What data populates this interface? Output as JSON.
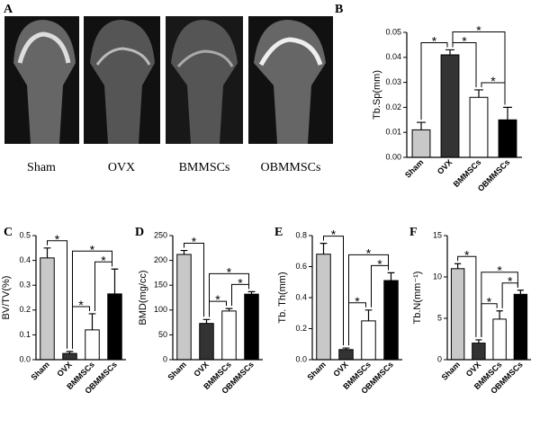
{
  "panel_a": {
    "label": "A",
    "captions": [
      "Sham",
      "OVX",
      "BMMSCs",
      "OBMMSCs"
    ]
  },
  "chart_data": [
    {
      "type": "bar",
      "panel": "B",
      "ylabel": "Tb.Sp(mm)",
      "categories": [
        "Sham",
        "OVX",
        "BMMSCs",
        "OBMMSCs"
      ],
      "colors": [
        "#c8c8c8",
        "#333333",
        "#ffffff",
        "#000000"
      ],
      "values": [
        0.011,
        0.041,
        0.024,
        0.015
      ],
      "errors": [
        0.003,
        0.002,
        0.003,
        0.005
      ],
      "ylim": [
        0,
        0.05
      ],
      "yticks": [
        {
          "value": 0,
          "label": "0.00"
        },
        0.01,
        0.02,
        0.03,
        0.04,
        0.05
      ],
      "significance": [
        {
          "groups": [
            0,
            1
          ],
          "label": "*"
        },
        {
          "groups": [
            1,
            2
          ],
          "label": "*"
        },
        {
          "groups": [
            2,
            3
          ],
          "label": "*"
        },
        {
          "groups": [
            1,
            3
          ],
          "label": "*"
        }
      ]
    },
    {
      "type": "bar",
      "panel": "C",
      "ylabel": "BV/TV(%)",
      "categories": [
        "Sham",
        "OVX",
        "BMMSCs",
        "OBMMSCs"
      ],
      "colors": [
        "#c8c8c8",
        "#333333",
        "#ffffff",
        "#000000"
      ],
      "values": [
        0.41,
        0.025,
        0.12,
        0.265
      ],
      "errors": [
        0.04,
        0.008,
        0.065,
        0.1
      ],
      "ylim": [
        0,
        0.5
      ],
      "yticks": [
        {
          "value": 0,
          "label": "0.0"
        },
        0.1,
        0.2,
        0.3,
        0.4,
        0.5
      ],
      "significance": [
        {
          "groups": [
            0,
            1
          ],
          "label": "*"
        },
        {
          "groups": [
            1,
            2
          ],
          "label": "*"
        },
        {
          "groups": [
            2,
            3
          ],
          "label": "*"
        },
        {
          "groups": [
            1,
            3
          ],
          "label": "*"
        }
      ]
    },
    {
      "type": "bar",
      "panel": "D",
      "ylabel": "BMD(mg/cc)",
      "categories": [
        "Sham",
        "OVX",
        "BMMSCs",
        "OBMMSCs"
      ],
      "colors": [
        "#c8c8c8",
        "#333333",
        "#ffffff",
        "#000000"
      ],
      "values": [
        212,
        73,
        98,
        132
      ],
      "errors": [
        8,
        8,
        5,
        5
      ],
      "ylim": [
        0,
        250
      ],
      "yticks": [
        0,
        50,
        100,
        150,
        200,
        250
      ],
      "significance": [
        {
          "groups": [
            0,
            1
          ],
          "label": "*"
        },
        {
          "groups": [
            1,
            2
          ],
          "label": "*"
        },
        {
          "groups": [
            2,
            3
          ],
          "label": "*"
        },
        {
          "groups": [
            1,
            3
          ],
          "label": "*"
        }
      ]
    },
    {
      "type": "bar",
      "panel": "E",
      "ylabel": "Tb. Th(mm)",
      "categories": [
        "Sham",
        "OVX",
        "BMMSCs",
        "OBMMSCs"
      ],
      "colors": [
        "#c8c8c8",
        "#333333",
        "#ffffff",
        "#000000"
      ],
      "values": [
        0.68,
        0.065,
        0.25,
        0.51
      ],
      "errors": [
        0.07,
        0.01,
        0.07,
        0.05
      ],
      "ylim": [
        0,
        0.8
      ],
      "yticks": [
        {
          "value": 0,
          "label": "0.0"
        },
        0.2,
        0.4,
        0.6,
        0.8
      ],
      "significance": [
        {
          "groups": [
            0,
            1
          ],
          "label": "*"
        },
        {
          "groups": [
            1,
            2
          ],
          "label": "*"
        },
        {
          "groups": [
            2,
            3
          ],
          "label": "*"
        },
        {
          "groups": [
            1,
            3
          ],
          "label": "*"
        }
      ]
    },
    {
      "type": "bar",
      "panel": "F",
      "ylabel": "Tb.N(mm⁻¹)",
      "categories": [
        "Sham",
        "OVX",
        "BMMSCs",
        "OBMMSCs"
      ],
      "colors": [
        "#c8c8c8",
        "#333333",
        "#ffffff",
        "#000000"
      ],
      "values": [
        11,
        2,
        4.9,
        7.9
      ],
      "errors": [
        0.6,
        0.4,
        1,
        0.5
      ],
      "ylim": [
        0,
        15
      ],
      "yticks": [
        0,
        5,
        10,
        15
      ],
      "significance": [
        {
          "groups": [
            0,
            1
          ],
          "label": "*"
        },
        {
          "groups": [
            1,
            2
          ],
          "label": "*"
        },
        {
          "groups": [
            2,
            3
          ],
          "label": "*"
        },
        {
          "groups": [
            1,
            3
          ],
          "label": "*"
        }
      ]
    }
  ]
}
